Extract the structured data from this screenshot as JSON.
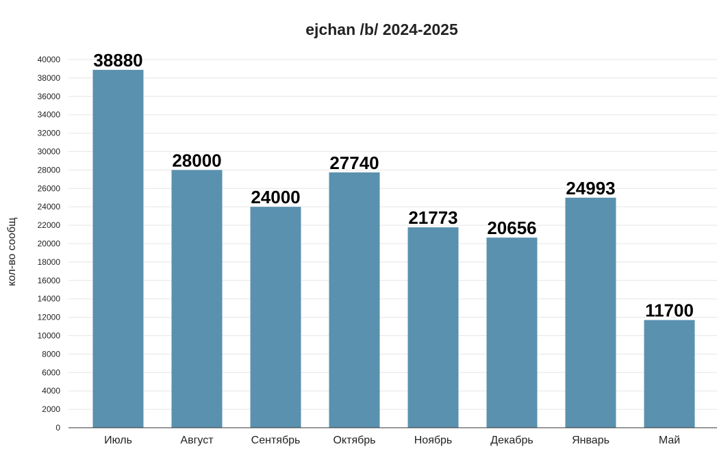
{
  "chart_data": {
    "type": "bar",
    "title": "ejchan /b/ 2024-2025",
    "xlabel": "",
    "ylabel": "кол-во сообщ",
    "categories": [
      "Июль",
      "Август",
      "Сентябрь",
      "Октябрь",
      "Ноябрь",
      "Декабрь",
      "Январь",
      "Май"
    ],
    "values": [
      38880,
      28000,
      24000,
      27740,
      21773,
      20656,
      24993,
      11700
    ],
    "data_labels": [
      "38880",
      "28000",
      "24000",
      "27740",
      "21773",
      "20656",
      "24993",
      "11700"
    ],
    "ylim": [
      0,
      40000
    ],
    "yticks": [
      0,
      2000,
      4000,
      6000,
      8000,
      10000,
      12000,
      14000,
      16000,
      18000,
      20000,
      22000,
      24000,
      26000,
      28000,
      30000,
      32000,
      34000,
      36000,
      38000,
      40000
    ],
    "grid": true,
    "legend": "none",
    "colors": {
      "bar": "#5a91af",
      "grid": "#e5e5e5",
      "axis": "#333333",
      "text": "#222222"
    }
  }
}
